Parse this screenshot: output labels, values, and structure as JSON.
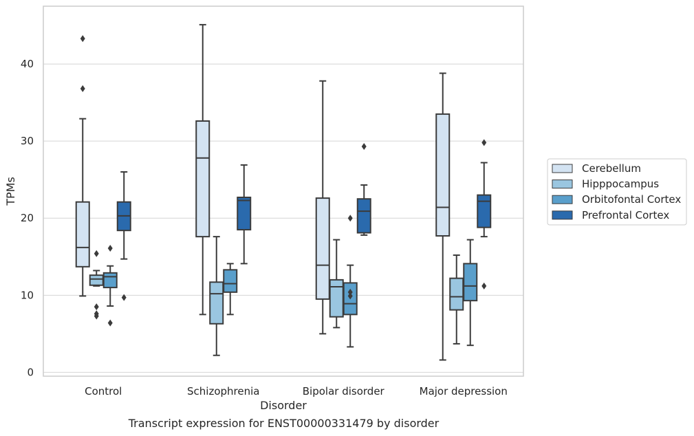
{
  "caption": "Transcript expression for ENST00000331479 by disorder",
  "chart_data": {
    "type": "boxplot",
    "title": "",
    "xlabel": "Disorder",
    "ylabel": "TPMs",
    "ylim": [
      -0.5,
      47.5
    ],
    "yticks": [
      0,
      10,
      20,
      30,
      40
    ],
    "grid": "horizontal",
    "legend_position": "right-outside",
    "categories": [
      "Control",
      "Schizophrenia",
      "Bipolar disorder",
      "Major depression"
    ],
    "series": [
      {
        "name": "Cerebellum",
        "color": "#d3e3f2",
        "boxes": [
          {
            "whisker_low": 9.9,
            "q1": 13.7,
            "median": 16.2,
            "q3": 22.1,
            "whisker_high": 32.9,
            "outliers": [
              43.3,
              36.8
            ]
          },
          {
            "whisker_low": 7.5,
            "q1": 17.6,
            "median": 27.8,
            "q3": 32.6,
            "whisker_high": 45.1,
            "outliers": []
          },
          {
            "whisker_low": 5.0,
            "q1": 9.5,
            "median": 13.9,
            "q3": 22.6,
            "whisker_high": 37.8,
            "outliers": []
          },
          {
            "whisker_low": 1.6,
            "q1": 17.7,
            "median": 21.4,
            "q3": 33.5,
            "whisker_high": 38.8,
            "outliers": []
          }
        ]
      },
      {
        "name": "Hipppocampus",
        "color": "#9ac6e0",
        "boxes": [
          {
            "whisker_low": 11.2,
            "q1": 11.3,
            "median": 12.1,
            "q3": 12.6,
            "whisker_high": 13.2,
            "outliers": [
              15.4,
              8.5,
              7.6,
              7.3
            ]
          },
          {
            "whisker_low": 2.2,
            "q1": 6.3,
            "median": 10.2,
            "q3": 11.7,
            "whisker_high": 17.6,
            "outliers": []
          },
          {
            "whisker_low": 5.8,
            "q1": 7.2,
            "median": 11.1,
            "q3": 12.0,
            "whisker_high": 17.2,
            "outliers": []
          },
          {
            "whisker_low": 3.7,
            "q1": 8.1,
            "median": 9.8,
            "q3": 12.2,
            "whisker_high": 15.2,
            "outliers": []
          }
        ]
      },
      {
        "name": "Orbitofontal Cortex",
        "color": "#5a9fcb",
        "boxes": [
          {
            "whisker_low": 8.6,
            "q1": 11.0,
            "median": 12.4,
            "q3": 12.9,
            "whisker_high": 13.8,
            "outliers": [
              16.1,
              6.4
            ]
          },
          {
            "whisker_low": 7.5,
            "q1": 10.4,
            "median": 11.5,
            "q3": 13.3,
            "whisker_high": 14.1,
            "outliers": []
          },
          {
            "whisker_low": 3.3,
            "q1": 7.5,
            "median": 8.9,
            "q3": 11.6,
            "whisker_high": 13.9,
            "outliers": [
              20.0,
              10.4,
              9.9
            ]
          },
          {
            "whisker_low": 3.5,
            "q1": 9.3,
            "median": 11.2,
            "q3": 14.1,
            "whisker_high": 17.2,
            "outliers": []
          }
        ]
      },
      {
        "name": "Prefrontal Cortex",
        "color": "#2a6aad",
        "boxes": [
          {
            "whisker_low": 14.7,
            "q1": 18.4,
            "median": 20.3,
            "q3": 22.1,
            "whisker_high": 26.0,
            "outliers": [
              9.7
            ]
          },
          {
            "whisker_low": 14.1,
            "q1": 18.5,
            "median": 22.3,
            "q3": 22.7,
            "whisker_high": 26.9,
            "outliers": []
          },
          {
            "whisker_low": 17.8,
            "q1": 18.1,
            "median": 20.9,
            "q3": 22.5,
            "whisker_high": 24.3,
            "outliers": [
              29.3
            ]
          },
          {
            "whisker_low": 17.6,
            "q1": 18.8,
            "median": 22.2,
            "q3": 23.0,
            "whisker_high": 27.2,
            "outliers": [
              29.8,
              11.2
            ]
          }
        ]
      }
    ]
  },
  "colors": {
    "grid": "#d4d4d4",
    "frame": "#cccccc",
    "box_edge": "#3b3b3b",
    "text": "#262626"
  }
}
